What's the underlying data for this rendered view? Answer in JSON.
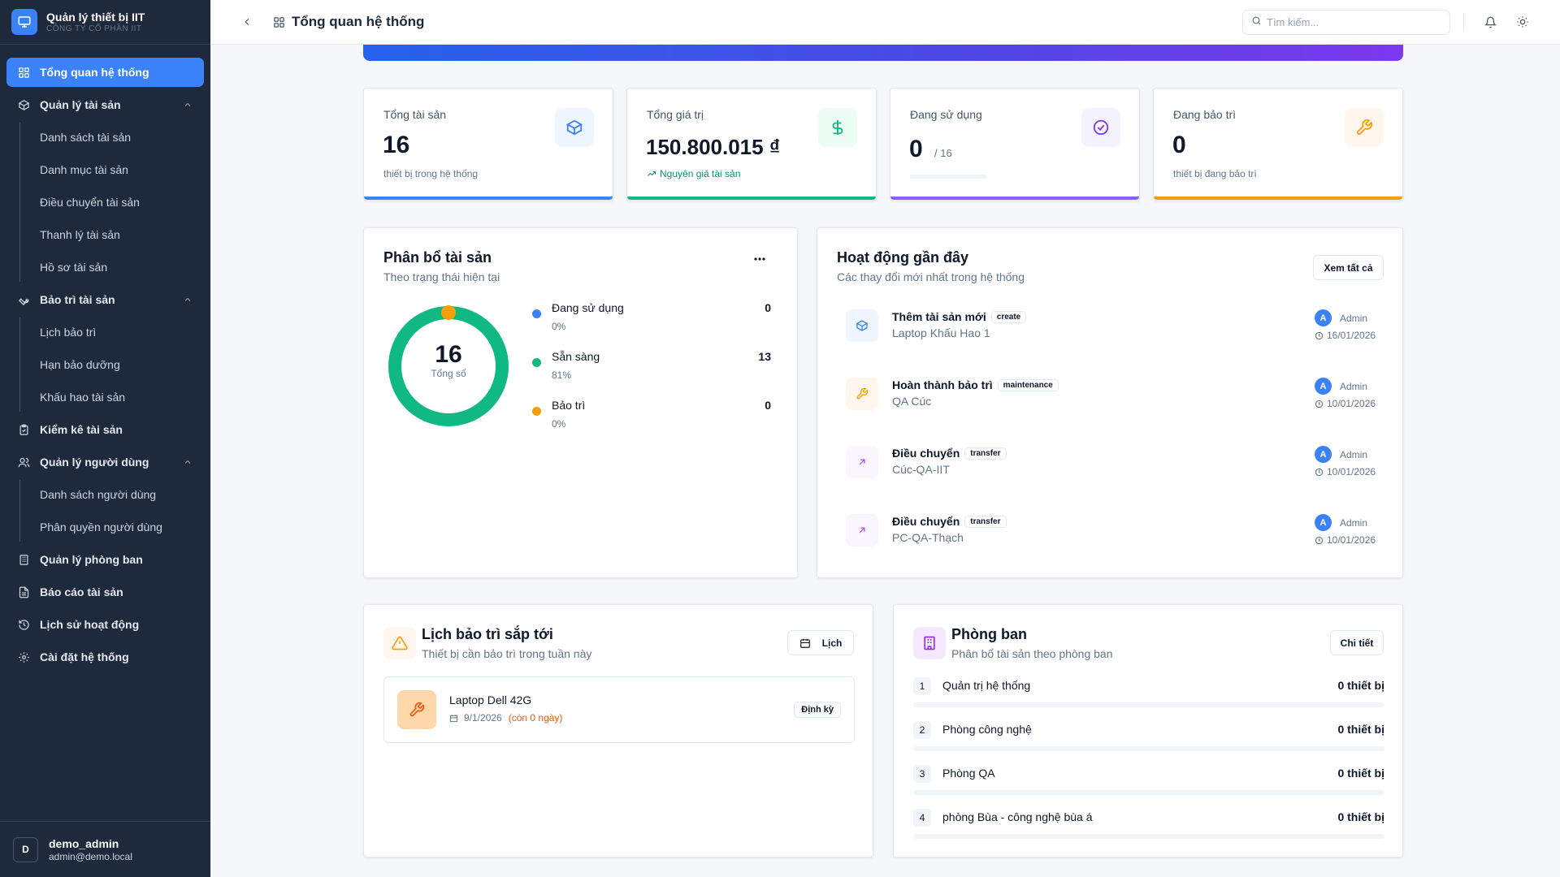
{
  "brand": {
    "title": "Quản lý thiết bị IIT",
    "subtitle": "CÔNG TY CỔ PHẦN IIT"
  },
  "sidebar": {
    "items": [
      {
        "label": "Tổng quan hệ thống",
        "icon": "grid-icon",
        "active": true
      },
      {
        "label": "Quản lý tài sản",
        "icon": "box-icon",
        "expanded": true,
        "children": [
          "Danh sách tài sản",
          "Danh mục tài sản",
          "Điều chuyển tài sản",
          "Thanh lý tài sản",
          "Hồ sơ tài sản"
        ]
      },
      {
        "label": "Bảo trì tài sản",
        "icon": "wrench-icon",
        "expanded": true,
        "children": [
          "Lịch bảo trì",
          "Hạn bảo dưỡng",
          "Khấu hao tài sản"
        ]
      },
      {
        "label": "Kiểm kê tài sản",
        "icon": "clipboard-check-icon"
      },
      {
        "label": "Quản lý người dùng",
        "icon": "users-icon",
        "expanded": true,
        "children": [
          "Danh sách người dùng",
          "Phân quyền người dùng"
        ]
      },
      {
        "label": "Quản lý phòng ban",
        "icon": "building-icon"
      },
      {
        "label": "Báo cáo tài sản",
        "icon": "file-text-icon"
      },
      {
        "label": "Lịch sử hoạt động",
        "icon": "history-icon"
      },
      {
        "label": "Cài đặt hệ thống",
        "icon": "gear-icon"
      }
    ]
  },
  "user": {
    "initial": "D",
    "name": "demo_admin",
    "email": "admin@demo.local"
  },
  "topbar": {
    "title": "Tổng quan hệ thống",
    "search_placeholder": "Tìm kiếm..."
  },
  "stats": [
    {
      "label": "Tổng tài sản",
      "value": "16",
      "sub": "thiết bị trong hệ thống",
      "color": "#3b82f6",
      "icon": "box-icon"
    },
    {
      "label": "Tổng giá trị",
      "value": "150.800.015 ₫",
      "sub": "Nguyên giá tài sản",
      "color": "#10b981",
      "icon": "dollar-icon"
    },
    {
      "label": "Đang sử dụng",
      "value": "0",
      "value_suffix": "/ 16",
      "progress": 0,
      "color": "#8b5cf6",
      "icon": "check-circle-icon"
    },
    {
      "label": "Đang bảo trì",
      "value": "0",
      "sub": "thiết bị đang bảo trì",
      "color": "#f59e0b",
      "icon": "wrench-icon"
    }
  ],
  "distribution": {
    "title": "Phân bổ tài sản",
    "subtitle": "Theo trạng thái hiện tại",
    "total": "16",
    "total_label": "Tổng số",
    "chart_data": {
      "type": "pie",
      "categories": [
        "Đang sử dụng",
        "Sẵn sàng",
        "Bảo trì"
      ],
      "values": [
        0,
        13,
        0
      ],
      "percent_labels": [
        "0%",
        "81%",
        "0%"
      ],
      "colors": [
        "#3b82f6",
        "#10b981",
        "#f59e0b"
      ]
    }
  },
  "activity": {
    "title": "Hoạt động gần đây",
    "subtitle": "Các thay đổi mới nhất trong hệ thống",
    "view_all": "Xem tất cả",
    "items": [
      {
        "title": "Thêm tài sản mới",
        "tag": "create",
        "target": "Laptop Khấu Hao 1",
        "user": "Admin",
        "user_initial": "A",
        "date": "16/01/2026",
        "icon": "box-icon",
        "color": "#3b82f6",
        "bg": "#eff6ff"
      },
      {
        "title": "Hoàn thành bảo trì",
        "tag": "maintenance",
        "target": "QA Cúc",
        "user": "Admin",
        "user_initial": "A",
        "date": "10/01/2026",
        "icon": "wrench-icon",
        "color": "#f59e0b",
        "bg": "#fff7ed"
      },
      {
        "title": "Điều chuyển",
        "tag": "transfer",
        "target": "Cúc-QA-IIT",
        "user": "Admin",
        "user_initial": "A",
        "date": "10/01/2026",
        "icon": "arrow-up-right-icon",
        "color": "#a855f7",
        "bg": "#faf5ff"
      },
      {
        "title": "Điều chuyển",
        "tag": "transfer",
        "target": "PC-QA-Thạch",
        "user": "Admin",
        "user_initial": "A",
        "date": "10/01/2026",
        "icon": "arrow-up-right-icon",
        "color": "#a855f7",
        "bg": "#faf5ff"
      }
    ]
  },
  "maintenance": {
    "title": "Lịch bảo trì sắp tới",
    "subtitle": "Thiết bị cần bảo trì trong tuần này",
    "calendar_btn": "Lịch",
    "items": [
      {
        "name": "Laptop Dell 42G",
        "date": "9/1/2026",
        "remaining": "(còn 0 ngày)",
        "badge": "Định kỳ"
      }
    ]
  },
  "departments": {
    "title": "Phòng ban",
    "subtitle": "Phân bổ tài sản theo phòng ban",
    "detail_btn": "Chi tiết",
    "items": [
      {
        "no": "1",
        "name": "Quản trị hệ thống",
        "value": "0 thiết bị"
      },
      {
        "no": "2",
        "name": "Phòng công nghệ",
        "value": "0 thiết bị"
      },
      {
        "no": "3",
        "name": "Phòng QA",
        "value": "0 thiết bị"
      },
      {
        "no": "4",
        "name": "phòng Bùa - công nghệ bùa á",
        "value": "0 thiết bị"
      }
    ]
  }
}
